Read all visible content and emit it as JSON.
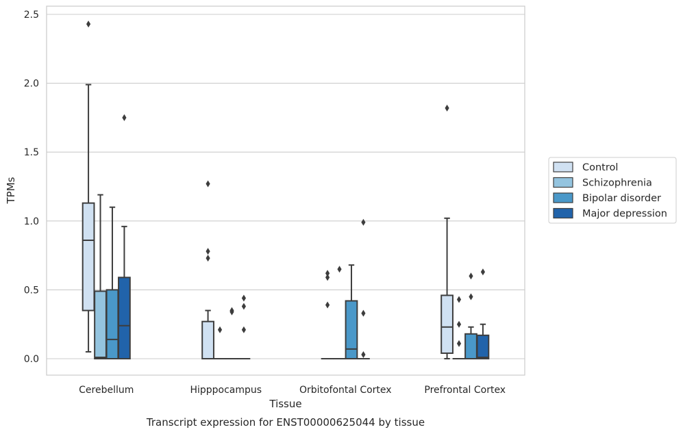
{
  "chart_data": {
    "type": "box",
    "title": "",
    "caption": "Transcript expression for ENST00000625044 by tissue",
    "xlabel": "Tissue",
    "ylabel": "TPMs",
    "ylim": [
      -0.12,
      2.56
    ],
    "yticks": [
      0.0,
      0.5,
      1.0,
      1.5,
      2.0,
      2.5
    ],
    "ytick_labels": [
      "0.0",
      "0.5",
      "1.0",
      "1.5",
      "2.0",
      "2.5"
    ],
    "categories": [
      "Cerebellum",
      "Hipppocampus",
      "Orbitofontal Cortex",
      "Prefrontal Cortex"
    ],
    "grid": "horizontal",
    "legend_position": "right",
    "series": [
      {
        "name": "Control",
        "color": "#d0e1f2",
        "boxes": [
          {
            "whislo": 0.05,
            "q1": 0.35,
            "med": 0.86,
            "q3": 1.13,
            "whishi": 1.99,
            "fliers": [
              2.43
            ]
          },
          {
            "whislo": 0.0,
            "q1": 0.0,
            "med": 0.0,
            "q3": 0.27,
            "whishi": 0.35,
            "fliers": [
              0.73,
              0.78,
              1.27
            ]
          },
          {
            "whislo": 0.0,
            "q1": 0.0,
            "med": 0.0,
            "q3": 0.0,
            "whishi": 0.0,
            "fliers": [
              0.39,
              0.59,
              0.62
            ]
          },
          {
            "whislo": 0.0,
            "q1": 0.04,
            "med": 0.23,
            "q3": 0.46,
            "whishi": 1.02,
            "fliers": [
              1.82
            ]
          }
        ]
      },
      {
        "name": "Schizophrenia",
        "color": "#94c4df",
        "boxes": [
          {
            "whislo": 0.0,
            "q1": 0.0,
            "med": 0.01,
            "q3": 0.49,
            "whishi": 1.19,
            "fliers": []
          },
          {
            "whislo": 0.0,
            "q1": 0.0,
            "med": 0.0,
            "q3": 0.0,
            "whishi": 0.0,
            "fliers": [
              0.21
            ]
          },
          {
            "whislo": 0.0,
            "q1": 0.0,
            "med": 0.0,
            "q3": 0.0,
            "whishi": 0.0,
            "fliers": [
              0.65
            ]
          },
          {
            "whislo": 0.0,
            "q1": 0.0,
            "med": 0.0,
            "q3": 0.0,
            "whishi": 0.0,
            "fliers": [
              0.11,
              0.25,
              0.43
            ]
          }
        ]
      },
      {
        "name": "Bipolar disorder",
        "color": "#4a98c9",
        "boxes": [
          {
            "whislo": 0.0,
            "q1": 0.0,
            "med": 0.14,
            "q3": 0.5,
            "whishi": 1.1,
            "fliers": []
          },
          {
            "whislo": 0.0,
            "q1": 0.0,
            "med": 0.0,
            "q3": 0.0,
            "whishi": 0.0,
            "fliers": [
              0.34,
              0.35
            ]
          },
          {
            "whislo": 0.0,
            "q1": 0.0,
            "med": 0.07,
            "q3": 0.42,
            "whishi": 0.68,
            "fliers": []
          },
          {
            "whislo": 0.0,
            "q1": 0.0,
            "med": 0.0,
            "q3": 0.18,
            "whishi": 0.23,
            "fliers": [
              0.45,
              0.6
            ]
          }
        ]
      },
      {
        "name": "Major depression",
        "color": "#2163aa",
        "boxes": [
          {
            "whislo": 0.0,
            "q1": 0.0,
            "med": 0.24,
            "q3": 0.59,
            "whishi": 0.96,
            "fliers": [
              1.75
            ]
          },
          {
            "whislo": 0.0,
            "q1": 0.0,
            "med": 0.0,
            "q3": 0.0,
            "whishi": 0.0,
            "fliers": [
              0.21,
              0.38,
              0.44
            ]
          },
          {
            "whislo": 0.0,
            "q1": 0.0,
            "med": 0.0,
            "q3": 0.0,
            "whishi": 0.0,
            "fliers": [
              0.03,
              0.33,
              0.99
            ]
          },
          {
            "whislo": 0.0,
            "q1": 0.0,
            "med": 0.01,
            "q3": 0.17,
            "whishi": 0.25,
            "fliers": [
              0.63
            ]
          }
        ]
      }
    ]
  }
}
